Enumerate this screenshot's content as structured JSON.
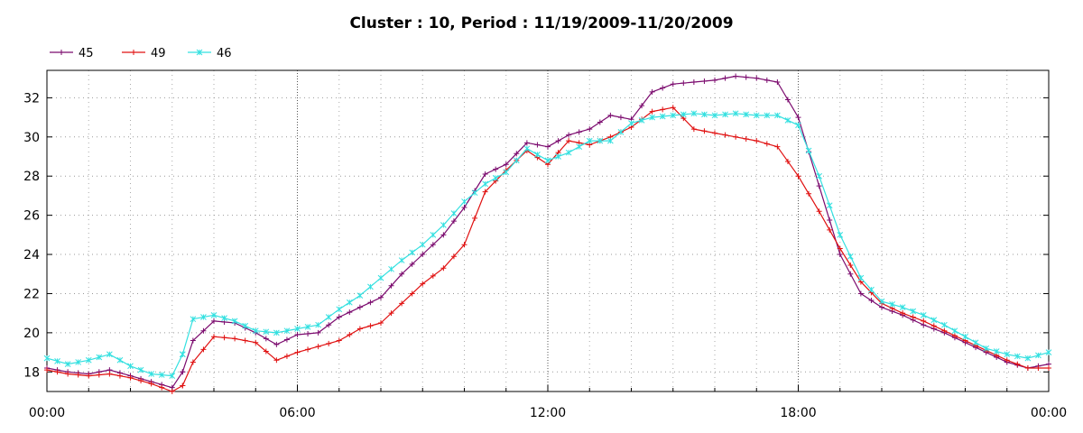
{
  "chart_data": {
    "type": "line",
    "title": "Cluster : 10, Period : 11/19/2009-11/20/2009",
    "xlabel": "",
    "ylabel": "",
    "x_range": [
      "00:00",
      "24:00"
    ],
    "ylim": [
      17.0,
      33.4
    ],
    "x_ticks": [
      {
        "hour": 0,
        "label": "00:00"
      },
      {
        "hour": 6,
        "label": "06:00"
      },
      {
        "hour": 12,
        "label": "12:00"
      },
      {
        "hour": 18,
        "label": "18:00"
      },
      {
        "hour": 24,
        "label": "00:00"
      }
    ],
    "y_ticks": [
      18,
      20,
      22,
      24,
      26,
      28,
      30,
      32
    ],
    "grid": "dotted, vertical every hour, horizontal at y ticks",
    "legend_position": "top-left",
    "x_hours": [
      0,
      0.5,
      1,
      1.5,
      2,
      2.5,
      3,
      3.25,
      3.5,
      4,
      4.5,
      5,
      5.5,
      6,
      6.5,
      7,
      7.5,
      8,
      8.5,
      9,
      9.5,
      10,
      10.5,
      11,
      11.5,
      12,
      12.5,
      13,
      13.5,
      14,
      14.5,
      15,
      15.5,
      16,
      16.5,
      17,
      17.5,
      18,
      18.5,
      19,
      19.5,
      20,
      20.5,
      21,
      21.5,
      22,
      22.5,
      23,
      23.5,
      24
    ],
    "series": [
      {
        "name": "45",
        "color": "#7b0a6e",
        "marker": "+",
        "values": [
          18.2,
          18.0,
          17.9,
          18.1,
          17.8,
          17.5,
          17.2,
          18.0,
          19.6,
          20.6,
          20.5,
          20.0,
          19.4,
          19.9,
          20.0,
          20.8,
          21.3,
          21.8,
          23.0,
          24.0,
          25.0,
          26.4,
          28.1,
          28.6,
          29.7,
          29.5,
          30.1,
          30.4,
          31.1,
          30.9,
          32.3,
          32.7,
          32.8,
          32.9,
          33.1,
          33.0,
          32.8,
          31.0,
          27.5,
          24.0,
          22.0,
          21.3,
          20.9,
          20.4,
          20.0,
          19.5,
          19.0,
          18.5,
          18.2,
          18.4
        ]
      },
      {
        "name": "49",
        "color": "#e01010",
        "marker": "+",
        "values": [
          18.1,
          17.9,
          17.8,
          17.9,
          17.7,
          17.4,
          17.0,
          17.3,
          18.5,
          19.8,
          19.7,
          19.5,
          18.6,
          19.0,
          19.3,
          19.6,
          20.2,
          20.5,
          21.5,
          22.5,
          23.3,
          24.5,
          27.2,
          28.3,
          29.3,
          28.6,
          29.8,
          29.6,
          30.0,
          30.5,
          31.3,
          31.5,
          30.4,
          30.2,
          30.0,
          29.8,
          29.5,
          28.0,
          26.2,
          24.3,
          22.6,
          21.5,
          21.0,
          20.6,
          20.1,
          19.6,
          19.1,
          18.6,
          18.2,
          18.2
        ]
      },
      {
        "name": "46",
        "color": "#33e0e0",
        "marker": "x",
        "values": [
          18.7,
          18.4,
          18.6,
          18.9,
          18.3,
          17.9,
          17.8,
          18.9,
          20.7,
          20.9,
          20.6,
          20.1,
          20.0,
          20.2,
          20.4,
          21.2,
          21.9,
          22.8,
          23.7,
          24.5,
          25.5,
          26.7,
          27.6,
          28.2,
          29.4,
          28.8,
          29.2,
          29.8,
          29.8,
          30.7,
          31.0,
          31.1,
          31.2,
          31.1,
          31.2,
          31.1,
          31.1,
          30.6,
          28.0,
          25.0,
          22.8,
          21.6,
          21.3,
          20.9,
          20.4,
          19.8,
          19.2,
          18.9,
          18.7,
          19.0
        ]
      }
    ]
  }
}
